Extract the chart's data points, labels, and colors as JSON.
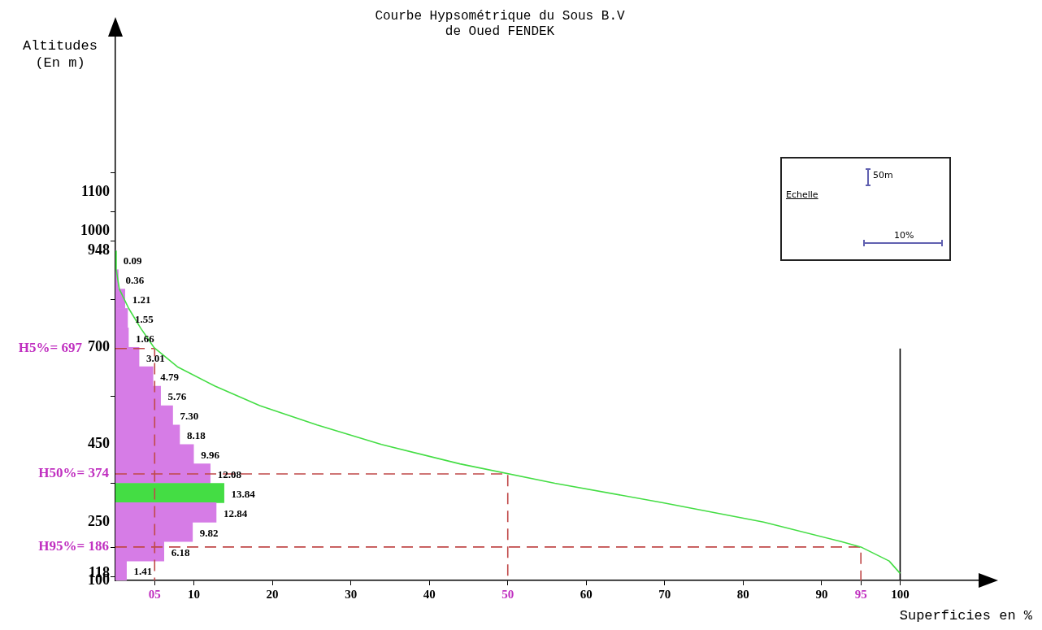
{
  "chart_data": {
    "type": "bar",
    "orientation": "horizontal",
    "title": "Courbe Hypsométrique du Sous B.V\nde Oued FENDEK",
    "xlabel": "Superficies en %",
    "ylabel": "Altitudes\n(En m)",
    "annotations": [
      "Echelle",
      "50m",
      "10%",
      "H5%= 697",
      "H50%= 374",
      "H95%= 186"
    ],
    "xlim": [
      0,
      110
    ],
    "ylim": [
      100,
      1500
    ],
    "xticks": [
      {
        "value": 5,
        "label": "05"
      },
      10,
      20,
      30,
      40,
      50,
      60,
      70,
      80,
      90,
      95,
      100
    ],
    "yticks": [
      100,
      118,
      250,
      450,
      700,
      948,
      1000,
      1100
    ],
    "grid": false,
    "legend": false,
    "marker": "none",
    "series": [
      {
        "x": [
          925,
          875,
          825,
          775,
          725,
          675,
          625,
          575,
          525,
          475,
          425,
          375,
          325,
          275,
          225,
          175,
          125
        ],
        "values": [
          0.09,
          0.36,
          1.21,
          1.55,
          1.66,
          3.01,
          4.79,
          5.76,
          7.3,
          8.18,
          9.96,
          12.08,
          13.84,
          12.84,
          9.82,
          6.18,
          1.41
        ],
        "value_labels": [
          "0.09",
          "0.36",
          "1.21",
          "1.55",
          "1.66",
          "3.01",
          "4.79",
          "5.76",
          "7.30",
          "8.18",
          "9.96",
          "12.08",
          "13.84",
          "12.84",
          "9.82",
          "6.18",
          "1.41"
        ],
        "colors": [
          "#d67ce6",
          "#d67ce6",
          "#d67ce6",
          "#d67ce6",
          "#d67ce6",
          "#d67ce6",
          "#d67ce6",
          "#d67ce6",
          "#d67ce6",
          "#d67ce6",
          "#d67ce6",
          "#d67ce6",
          "#44dd44",
          "#d67ce6",
          "#d67ce6",
          "#d67ce6",
          "#d67ce6"
        ]
      },
      {
        "type": "line",
        "color": "#44dd44",
        "x": [
          948,
          900,
          850,
          800,
          750,
          700,
          650,
          600,
          550,
          500,
          450,
          400,
          350,
          300,
          250,
          200,
          186,
          150,
          118
        ],
        "values": [
          0,
          0.1,
          0.5,
          1.7,
          3.2,
          4.9,
          7.9,
          12.7,
          18.4,
          25.7,
          33.9,
          43.9,
          56,
          69.8,
          82.6,
          92.5,
          95,
          98.6,
          100
        ]
      },
      {
        "type": "line",
        "color": "#c04848",
        "line_style": "dashed",
        "x": [
          697,
          697,
          100
        ],
        "values": [
          0,
          5,
          5
        ]
      },
      {
        "type": "line",
        "color": "#c04848",
        "line_style": "dashed",
        "x": [
          374,
          374,
          100
        ],
        "values": [
          0,
          50,
          50
        ]
      },
      {
        "type": "line",
        "color": "#c04848",
        "line_style": "dashed",
        "x": [
          186,
          186,
          100
        ],
        "values": [
          0,
          95,
          95
        ]
      },
      {
        "type": "line",
        "color": "#000000",
        "line_style": "solid",
        "x": [
          100,
          697
        ],
        "values": [
          100,
          100
        ]
      }
    ]
  }
}
